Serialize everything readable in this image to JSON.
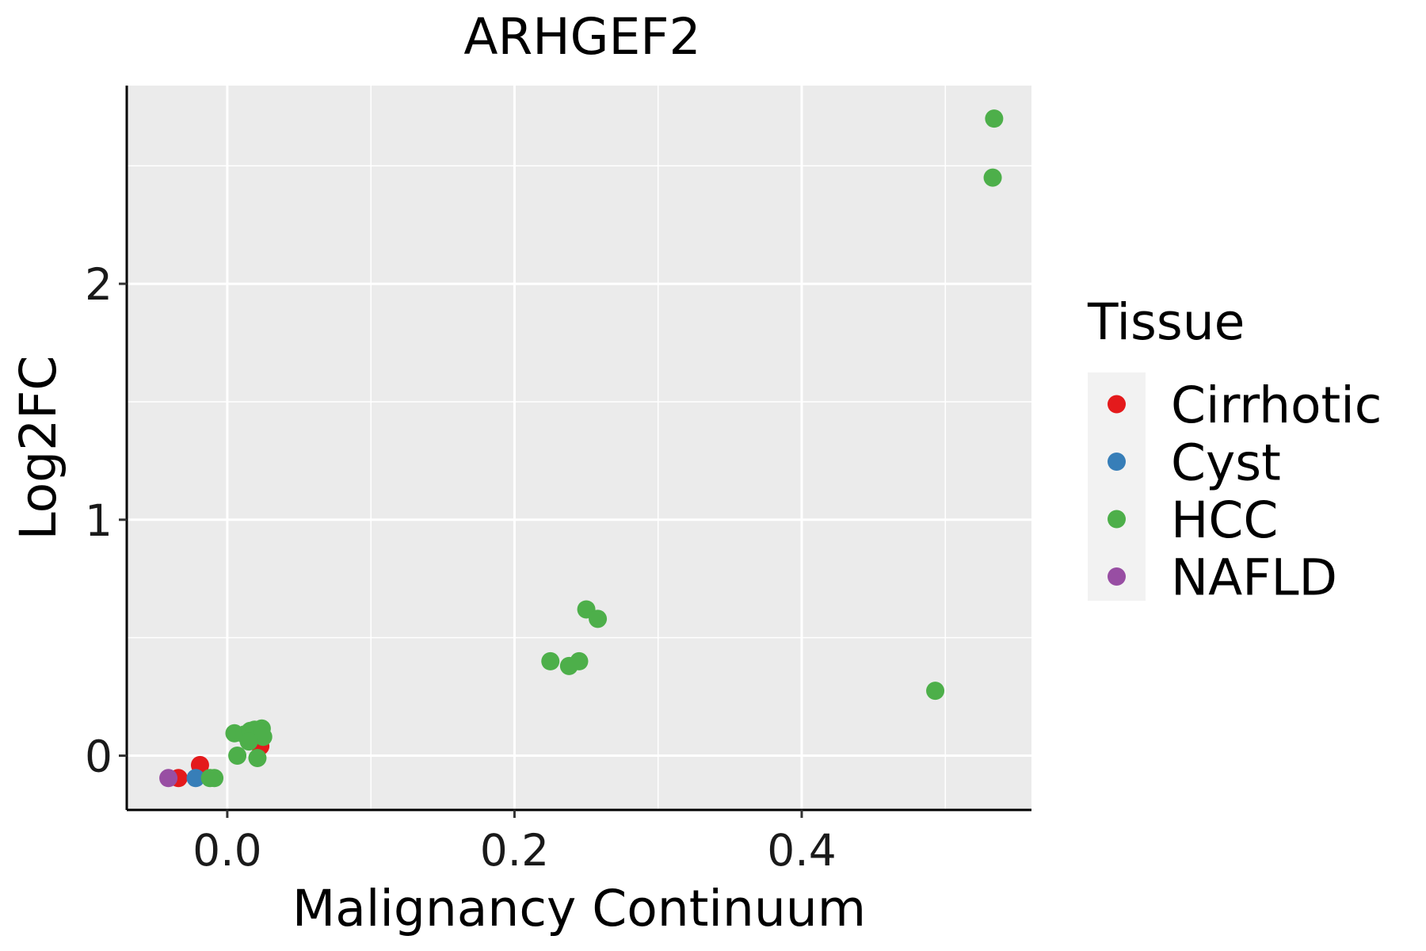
{
  "chart_data": {
    "type": "scatter",
    "title": "ARHGEF2",
    "xlabel": "Malignancy Continuum",
    "ylabel": "Log2FC",
    "xlim": [
      -0.07,
      0.56
    ],
    "ylim": [
      -0.23,
      2.84
    ],
    "x_ticks": [
      0.0,
      0.2,
      0.4
    ],
    "x_tick_labels": [
      "0.0",
      "0.2",
      "0.4"
    ],
    "y_ticks": [
      0,
      1,
      2
    ],
    "y_tick_labels": [
      "0",
      "1",
      "2"
    ],
    "x_minor": [
      0.1,
      0.3,
      0.5
    ],
    "y_minor": [
      0.5,
      1.5,
      2.5
    ],
    "grid": true,
    "legend": {
      "title": "Tissue",
      "position": "right",
      "entries": [
        {
          "label": "Cirrhotic",
          "color": "#E41A1C"
        },
        {
          "label": "Cyst",
          "color": "#377EB8"
        },
        {
          "label": "HCC",
          "color": "#4DAF4A"
        },
        {
          "label": "NAFLD",
          "color": "#984EA3"
        }
      ]
    },
    "series": [
      {
        "name": "Cirrhotic",
        "color": "#E41A1C",
        "points": [
          {
            "x": -0.034,
            "y": -0.095
          },
          {
            "x": -0.019,
            "y": -0.04
          },
          {
            "x": 0.021,
            "y": 0.1
          },
          {
            "x": 0.023,
            "y": 0.04
          }
        ]
      },
      {
        "name": "Cyst",
        "color": "#377EB8",
        "points": [
          {
            "x": -0.022,
            "y": -0.095
          }
        ]
      },
      {
        "name": "HCC",
        "color": "#4DAF4A",
        "points": [
          {
            "x": 0.534,
            "y": 2.7
          },
          {
            "x": 0.533,
            "y": 2.45
          },
          {
            "x": 0.25,
            "y": 0.62
          },
          {
            "x": 0.258,
            "y": 0.58
          },
          {
            "x": 0.225,
            "y": 0.4
          },
          {
            "x": 0.238,
            "y": 0.38
          },
          {
            "x": 0.245,
            "y": 0.4
          },
          {
            "x": 0.493,
            "y": 0.275
          },
          {
            "x": 0.005,
            "y": 0.095
          },
          {
            "x": 0.012,
            "y": 0.09
          },
          {
            "x": 0.016,
            "y": 0.105
          },
          {
            "x": 0.019,
            "y": 0.11
          },
          {
            "x": 0.024,
            "y": 0.115
          },
          {
            "x": 0.025,
            "y": 0.08
          },
          {
            "x": 0.015,
            "y": 0.06
          },
          {
            "x": 0.007,
            "y": 0.0
          },
          {
            "x": 0.021,
            "y": -0.01
          },
          {
            "x": -0.009,
            "y": -0.095
          },
          {
            "x": -0.012,
            "y": -0.095
          }
        ]
      },
      {
        "name": "NAFLD",
        "color": "#984EA3",
        "points": [
          {
            "x": -0.041,
            "y": -0.095
          }
        ]
      }
    ]
  },
  "colors": {
    "panel_bg": "#EBEBEB",
    "grid": "#FFFFFF",
    "axis": "#000000",
    "legend_key_bg": "#F2F2F2"
  }
}
